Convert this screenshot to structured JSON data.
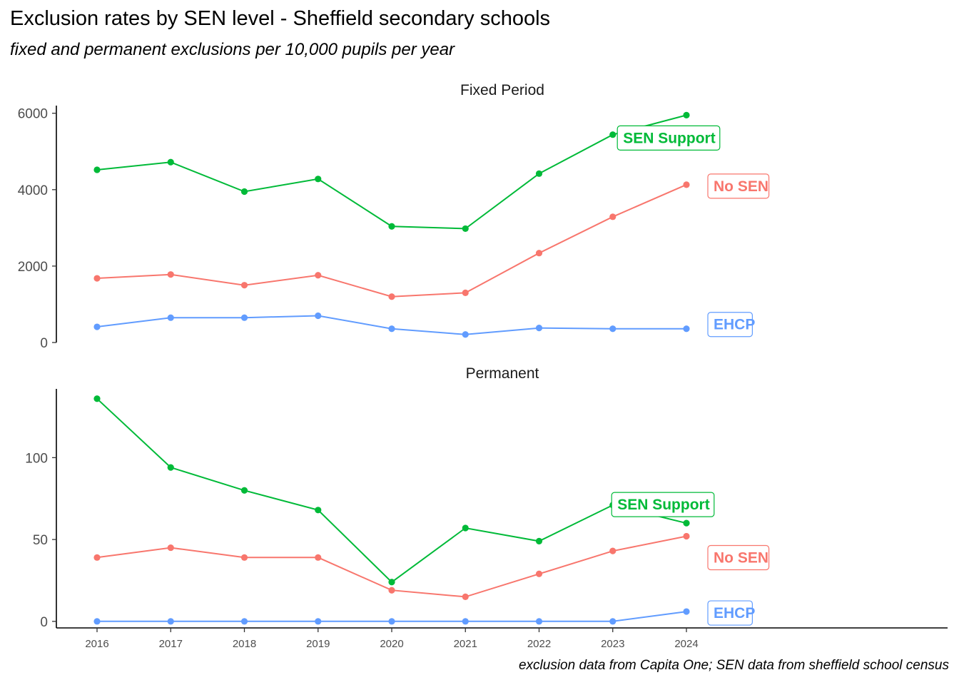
{
  "title": "Exclusion rates by SEN level - Sheffield secondary schools",
  "subtitle": "fixed and permanent exclusions per 10,000 pupils per year",
  "caption": "exclusion data from Capita One; SEN data from sheffield school census",
  "colors": {
    "EHCP": "#619CFF",
    "No SEN": "#F8766D",
    "SEN Support": "#00BA38"
  },
  "chart_data": [
    {
      "type": "line",
      "title": "Fixed Period",
      "x": [
        2016,
        2017,
        2018,
        2019,
        2020,
        2021,
        2022,
        2023,
        2024
      ],
      "ylim": [
        0,
        6200
      ],
      "yticks": [
        0,
        2000,
        4000,
        6000
      ],
      "grid": false,
      "legend": "none (direct labels at line ends)",
      "series": [
        {
          "name": "SEN Support",
          "color": "#00BA38",
          "values": [
            4520,
            4720,
            3950,
            4280,
            3040,
            2980,
            4420,
            5440,
            5950
          ]
        },
        {
          "name": "No SEN",
          "color": "#F8766D",
          "values": [
            1680,
            1780,
            1500,
            1760,
            1200,
            1300,
            2340,
            3290,
            4130
          ]
        },
        {
          "name": "EHCP",
          "color": "#619CFF",
          "values": [
            410,
            650,
            650,
            700,
            360,
            210,
            380,
            360,
            360
          ]
        }
      ]
    },
    {
      "type": "line",
      "title": "Permanent",
      "x": [
        2016,
        2017,
        2018,
        2019,
        2020,
        2021,
        2022,
        2023,
        2024
      ],
      "ylim": [
        -4,
        142
      ],
      "yticks": [
        0,
        50,
        100
      ],
      "grid": false,
      "legend": "none (direct labels at line ends)",
      "series": [
        {
          "name": "SEN Support",
          "color": "#00BA38",
          "values": [
            136,
            94,
            80,
            68,
            24,
            57,
            49,
            71,
            60
          ]
        },
        {
          "name": "No SEN",
          "color": "#F8766D",
          "values": [
            39,
            45,
            39,
            39,
            19,
            15,
            29,
            43,
            52
          ]
        },
        {
          "name": "EHCP",
          "color": "#619CFF",
          "values": [
            0,
            0,
            0,
            0,
            0,
            0,
            0,
            0,
            6
          ]
        }
      ]
    }
  ]
}
